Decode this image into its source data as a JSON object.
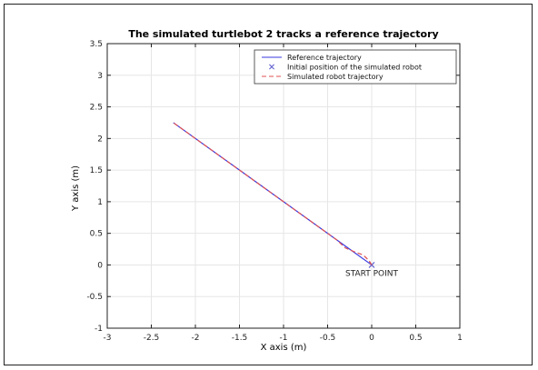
{
  "chart_data": {
    "type": "line",
    "title": "The simulated turtlebot 2 tracks a reference trajectory",
    "xlabel": "X axis (m)",
    "ylabel": "Y axis (m)",
    "xlim": [
      -3,
      1
    ],
    "ylim": [
      -1,
      3.5
    ],
    "xticks": [
      -3,
      -2.5,
      -2,
      -1.5,
      -1,
      -0.5,
      0,
      0.5,
      1
    ],
    "yticks": [
      -1,
      -0.5,
      0,
      0.5,
      1,
      1.5,
      2,
      2.5,
      3,
      3.5
    ],
    "grid": true,
    "legend_position": "top-right",
    "series": [
      {
        "name": "Reference trajectory",
        "style": "solid",
        "color": "#3a3ae0",
        "x": [
          -2.25,
          0
        ],
        "y": [
          2.25,
          0
        ]
      },
      {
        "name": "Initial position of the simulated robot",
        "style": "marker-x",
        "color": "#6060d0",
        "x": [
          0
        ],
        "y": [
          0
        ]
      },
      {
        "name": "Simulated robot trajectory",
        "style": "dashed",
        "color": "#e05050",
        "x": [
          0,
          -0.03,
          -0.1,
          -0.2,
          -0.3,
          -0.4,
          -0.8,
          -1.5,
          -2.25
        ],
        "y": [
          0,
          0.07,
          0.16,
          0.21,
          0.27,
          0.4,
          0.8,
          1.5,
          2.25
        ]
      }
    ],
    "annotations": [
      {
        "text": "START POINT",
        "x": 0,
        "y": 0
      }
    ]
  }
}
